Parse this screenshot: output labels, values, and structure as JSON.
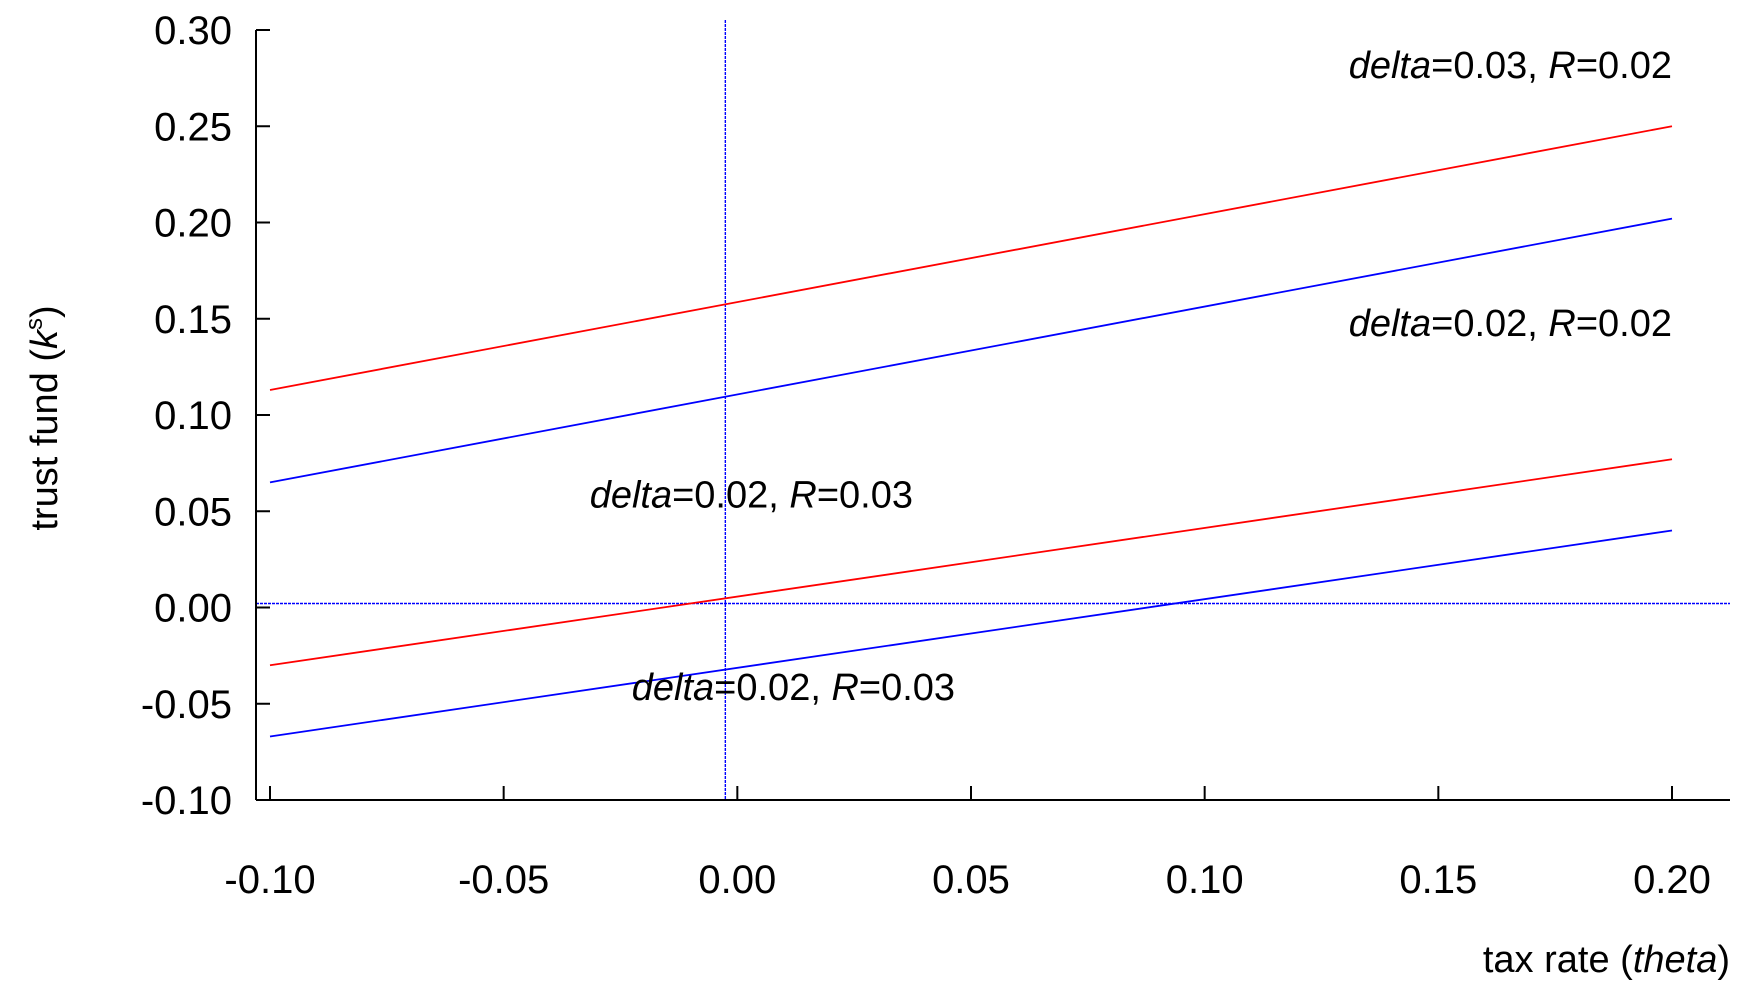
{
  "chart_data": {
    "type": "line",
    "xlabel": {
      "prefix": "tax rate (",
      "var": "theta",
      "suffix": ")"
    },
    "ylabel": {
      "prefix": "trust fund (",
      "var": "k",
      "sup": "s",
      "suffix": ")"
    },
    "xlim": [
      -0.1,
      0.2
    ],
    "ylim": [
      -0.1,
      0.3
    ],
    "x_ticks": [
      "-0.10",
      "-0.05",
      "0.00",
      "0.05",
      "0.10",
      "0.15",
      "0.20"
    ],
    "y_ticks": [
      "0.30",
      "0.25",
      "0.20",
      "0.15",
      "0.10",
      "0.05",
      "0.00",
      "-0.05",
      "-0.10"
    ],
    "grid": false,
    "reference_lines": [
      {
        "orientation": "horizontal",
        "value": 0.0,
        "color": "#0000ff"
      },
      {
        "orientation": "vertical",
        "value": 0.0,
        "color": "#0000ff"
      }
    ],
    "x": [
      -0.1,
      0.2
    ],
    "series": [
      {
        "values": [
          0.113,
          0.25
        ],
        "color": "#ff0000"
      },
      {
        "values": [
          0.065,
          0.202
        ],
        "color": "#0000ff"
      },
      {
        "values": [
          -0.03,
          0.077
        ],
        "color": "#ff0000"
      },
      {
        "values": [
          -0.067,
          0.04
        ],
        "color": "#0000ff"
      }
    ],
    "annotations": [
      {
        "var": "delta",
        "text1": "=0.03, ",
        "var2": "R",
        "text2": "=0.02",
        "x": 0.2,
        "y": 0.275,
        "anchor": "end"
      },
      {
        "var": "delta",
        "text1": "=0.02, ",
        "var2": "R",
        "text2": "=0.02",
        "x": 0.2,
        "y": 0.141,
        "anchor": "end"
      },
      {
        "var": "delta",
        "text1": "=0.02, ",
        "var2": "R",
        "text2": "=0.03",
        "x": 0.003,
        "y": 0.052,
        "anchor": "middle"
      },
      {
        "var": "delta",
        "text1": "=0.02, ",
        "var2": "R",
        "text2": "=0.03",
        "x": 0.012,
        "y": -0.048,
        "anchor": "middle"
      }
    ]
  }
}
